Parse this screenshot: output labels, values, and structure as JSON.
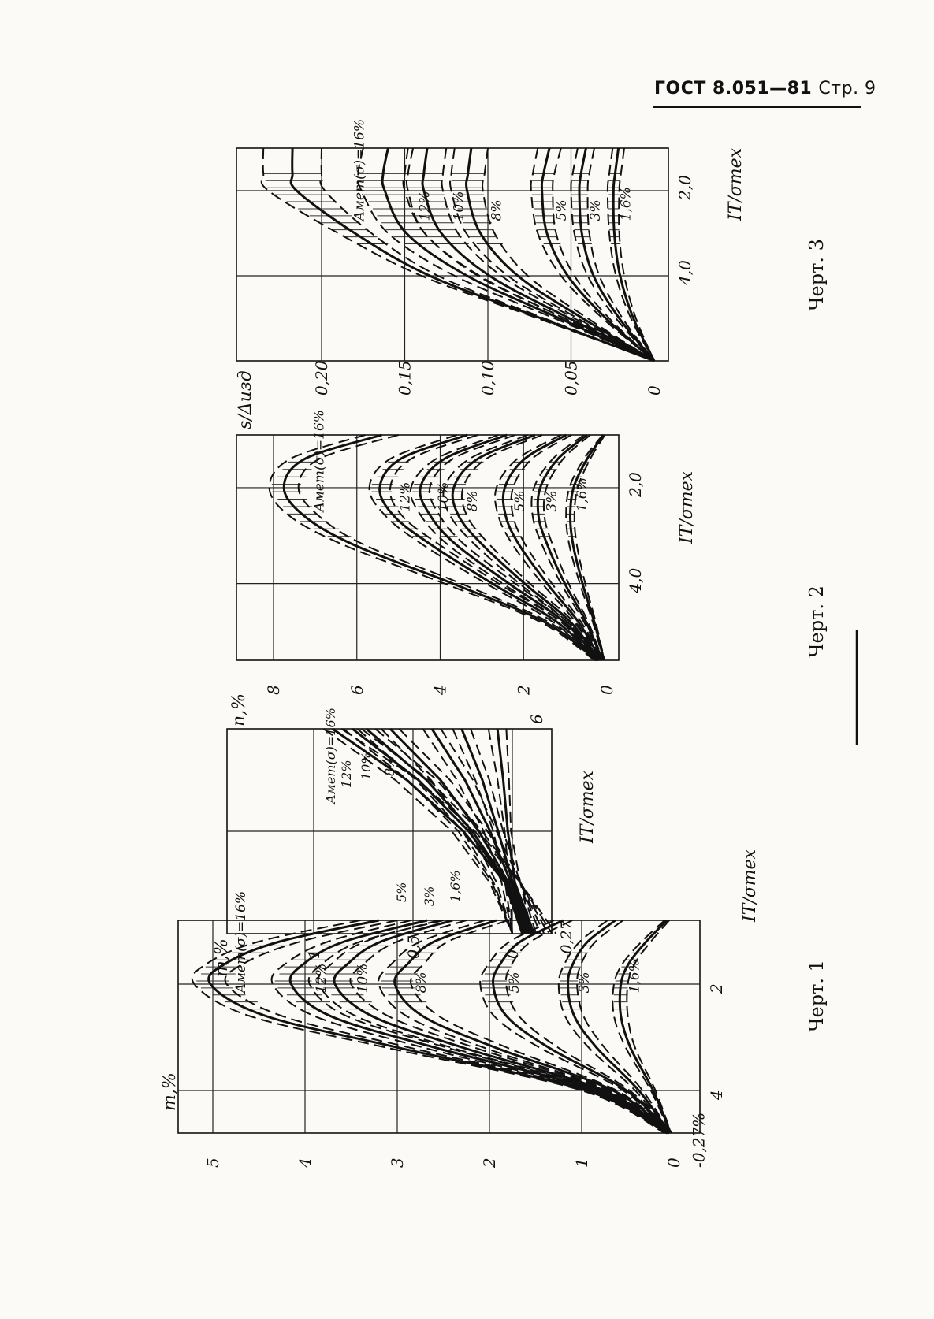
{
  "header": {
    "standard": "ГОСТ 8.051—81",
    "page_label": "Стр. 9"
  },
  "chart_data": [
    {
      "id": "chart1",
      "type": "line",
      "caption": "Черт. 1",
      "ylabel": "m,%",
      "xlabel": "IT/σтех",
      "y_ticks": [
        "5",
        "4",
        "3",
        "2",
        "1",
        "0",
        "-0,27%"
      ],
      "x_ticks": [
        "2",
        "4"
      ],
      "ylim": [
        -0.27,
        5.3
      ],
      "xlim": [
        0.8,
        4.8
      ],
      "series": [
        {
          "name": "Aмет(σ)=16%",
          "x": [
            0.8,
            1.2,
            1.6,
            2.0,
            2.6,
            3.2,
            4.0,
            4.8
          ],
          "upper": [
            3.4,
            4.5,
            5.05,
            5.2,
            4.6,
            3.1,
            1.0,
            0.1
          ],
          "lower": [
            3.0,
            4.05,
            4.65,
            4.85,
            4.25,
            2.85,
            0.9,
            0.05
          ]
        },
        {
          "name": "12%",
          "x": [
            0.8,
            1.2,
            1.6,
            2.0,
            2.6,
            3.2,
            4.0,
            4.8
          ],
          "upper": [
            2.85,
            3.75,
            4.2,
            4.35,
            3.9,
            2.7,
            0.9,
            0.08
          ],
          "lower": [
            2.5,
            3.4,
            3.8,
            3.95,
            3.55,
            2.45,
            0.8,
            0.05
          ]
        },
        {
          "name": "10%",
          "x": [
            0.8,
            1.2,
            1.6,
            2.0,
            2.6,
            3.2,
            4.0,
            4.8
          ],
          "upper": [
            2.55,
            3.35,
            3.7,
            3.85,
            3.45,
            2.4,
            0.8,
            0.07
          ],
          "lower": [
            2.25,
            3.0,
            3.35,
            3.5,
            3.1,
            2.15,
            0.72,
            0.05
          ]
        },
        {
          "name": "8%",
          "x": [
            0.8,
            1.2,
            1.6,
            2.0,
            2.6,
            3.2,
            4.0,
            4.8
          ],
          "upper": [
            2.05,
            2.75,
            3.05,
            3.2,
            2.9,
            2.05,
            0.7,
            0.06
          ],
          "lower": [
            1.8,
            2.45,
            2.7,
            2.85,
            2.55,
            1.8,
            0.62,
            0.04
          ]
        },
        {
          "name": "5%",
          "x": [
            0.8,
            1.2,
            1.6,
            2.0,
            2.6,
            3.2,
            4.0,
            4.8
          ],
          "upper": [
            1.3,
            1.78,
            2.0,
            2.1,
            1.95,
            1.45,
            0.55,
            0.05
          ],
          "lower": [
            1.1,
            1.55,
            1.75,
            1.82,
            1.68,
            1.25,
            0.48,
            0.04
          ]
        },
        {
          "name": "3%",
          "x": [
            0.8,
            1.2,
            1.6,
            2.0,
            2.6,
            3.2,
            4.0,
            4.8
          ],
          "upper": [
            0.72,
            1.02,
            1.18,
            1.25,
            1.18,
            0.92,
            0.42,
            0.05
          ],
          "lower": [
            0.55,
            0.85,
            1.0,
            1.05,
            0.98,
            0.75,
            0.34,
            0.04
          ]
        },
        {
          "name": "1,6%",
          "x": [
            0.8,
            1.2,
            1.6,
            2.0,
            2.6,
            3.2,
            4.0,
            4.8
          ],
          "upper": [
            0.1,
            0.35,
            0.55,
            0.65,
            0.65,
            0.52,
            0.25,
            0.04
          ],
          "lower": [
            0.05,
            0.25,
            0.42,
            0.5,
            0.5,
            0.42,
            0.2,
            0.03
          ]
        }
      ]
    },
    {
      "id": "chart1-inset",
      "type": "line",
      "ylabel": "m,%",
      "xlabel": "IT/σтех",
      "y_ticks": [
        "1",
        "0,5",
        "0",
        "-0,27"
      ],
      "x_ticks": [
        "6"
      ],
      "ylim": [
        -0.27,
        1.0
      ],
      "xlim": [
        4.0,
        6.0
      ],
      "series_labels": [
        "Aмет(σ)=16%",
        "12%",
        "10%",
        "8%",
        "5%",
        "3%",
        "1,6%"
      ]
    },
    {
      "id": "chart2",
      "type": "line",
      "caption": "Черт. 2",
      "ylabel": "n,%",
      "xlabel": "IT/σтех",
      "y_ticks": [
        "8",
        "6",
        "4",
        "2",
        "0"
      ],
      "x_ticks": [
        "2,0",
        "4,0"
      ],
      "ylim": [
        0,
        9.2
      ],
      "xlim": [
        0.9,
        5.6
      ],
      "series": [
        {
          "name": "Aмет(σ)=16%",
          "x": [
            0.9,
            1.4,
            2.0,
            2.6,
            3.2,
            4.0,
            4.8,
            5.6
          ],
          "upper": [
            5.8,
            7.6,
            8.1,
            7.6,
            6.3,
            3.9,
            1.6,
            0.3
          ],
          "lower": [
            5.0,
            6.9,
            7.4,
            6.9,
            5.8,
            3.5,
            1.4,
            0.2
          ]
        },
        {
          "name": "12%",
          "x": [
            0.9,
            1.4,
            2.0,
            2.6,
            3.2,
            4.0,
            4.8,
            5.6
          ],
          "upper": [
            3.6,
            5.2,
            5.7,
            5.3,
            4.4,
            2.9,
            1.3,
            0.25
          ],
          "lower": [
            3.1,
            4.7,
            5.2,
            4.9,
            4.0,
            2.6,
            1.1,
            0.2
          ]
        },
        {
          "name": "10%",
          "x": [
            0.9,
            1.4,
            2.0,
            2.6,
            3.2,
            4.0,
            4.8,
            5.6
          ],
          "upper": [
            2.6,
            4.1,
            4.7,
            4.45,
            3.8,
            2.5,
            1.1,
            0.22
          ],
          "lower": [
            2.2,
            3.7,
            4.25,
            4.0,
            3.4,
            2.2,
            0.95,
            0.18
          ]
        },
        {
          "name": "8%",
          "x": [
            0.9,
            1.4,
            2.0,
            2.6,
            3.2,
            4.0,
            4.8,
            5.6
          ],
          "upper": [
            1.9,
            3.3,
            3.9,
            3.75,
            3.15,
            2.1,
            0.95,
            0.2
          ],
          "lower": [
            1.55,
            2.9,
            3.45,
            3.35,
            2.8,
            1.85,
            0.8,
            0.16
          ]
        },
        {
          "name": "5%",
          "x": [
            0.9,
            1.4,
            2.0,
            2.6,
            3.2,
            4.0,
            4.8,
            5.6
          ],
          "upper": [
            1.1,
            2.15,
            2.65,
            2.6,
            2.25,
            1.55,
            0.75,
            0.16
          ],
          "lower": [
            0.85,
            1.8,
            2.25,
            2.25,
            1.95,
            1.32,
            0.62,
            0.13
          ]
        },
        {
          "name": "3%",
          "x": [
            0.9,
            1.4,
            2.0,
            2.6,
            3.2,
            4.0,
            4.8,
            5.6
          ],
          "upper": [
            0.55,
            1.3,
            1.75,
            1.78,
            1.55,
            1.1,
            0.55,
            0.12
          ],
          "lower": [
            0.4,
            1.05,
            1.45,
            1.5,
            1.3,
            0.92,
            0.45,
            0.1
          ]
        },
        {
          "name": "1,6%",
          "x": [
            0.9,
            1.4,
            2.0,
            2.6,
            3.2,
            4.0,
            4.8,
            5.6
          ],
          "upper": [
            0.1,
            0.55,
            0.9,
            0.98,
            0.9,
            0.65,
            0.34,
            0.08
          ],
          "lower": [
            0.05,
            0.4,
            0.7,
            0.78,
            0.72,
            0.52,
            0.27,
            0.06
          ]
        }
      ]
    },
    {
      "id": "chart3",
      "type": "line",
      "caption": "Черт. 3",
      "ylabel": "s/Δизд",
      "xlabel": "IT/σтех",
      "y_ticks": [
        "0,20",
        "0,15",
        "0,10",
        "0,05",
        "0"
      ],
      "x_ticks": [
        "2,0",
        "4,0"
      ],
      "ylim": [
        0,
        0.245
      ],
      "xlim": [
        1.0,
        6.0
      ],
      "series": [
        {
          "name": "Aмет(σ)=16%",
          "x": [
            1.0,
            1.6,
            2.0,
            3.0,
            4.0,
            5.0,
            6.0
          ],
          "upper": [
            0.235,
            0.235,
            0.232,
            0.19,
            0.14,
            0.07,
            0.0
          ],
          "lower": [
            0.2,
            0.2,
            0.198,
            0.17,
            0.13,
            0.066,
            0.0
          ]
        },
        {
          "name": "12%",
          "x": [
            1.0,
            1.6,
            2.0,
            3.0,
            4.0,
            5.0,
            6.0
          ],
          "upper": [
            0.175,
            0.178,
            0.176,
            0.16,
            0.12,
            0.06,
            0.0
          ],
          "lower": [
            0.145,
            0.148,
            0.148,
            0.138,
            0.105,
            0.054,
            0.0
          ]
        },
        {
          "name": "10%",
          "x": [
            1.0,
            1.6,
            2.0,
            3.0,
            4.0,
            5.0,
            6.0
          ],
          "upper": [
            0.148,
            0.15,
            0.15,
            0.138,
            0.106,
            0.054,
            0.0
          ],
          "lower": [
            0.125,
            0.127,
            0.127,
            0.118,
            0.092,
            0.048,
            0.0
          ]
        },
        {
          "name": "8%",
          "x": [
            1.0,
            1.6,
            2.0,
            3.0,
            4.0,
            5.0,
            6.0
          ],
          "upper": [
            0.12,
            0.122,
            0.122,
            0.113,
            0.088,
            0.046,
            0.0
          ],
          "lower": [
            0.1,
            0.102,
            0.103,
            0.096,
            0.076,
            0.04,
            0.0
          ]
        },
        {
          "name": "5%",
          "x": [
            1.0,
            1.6,
            2.0,
            3.0,
            4.0,
            5.0,
            6.0
          ],
          "upper": [
            0.07,
            0.073,
            0.074,
            0.07,
            0.056,
            0.031,
            0.0
          ],
          "lower": [
            0.056,
            0.06,
            0.061,
            0.059,
            0.048,
            0.027,
            0.0
          ]
        },
        {
          "name": "3%",
          "x": [
            1.0,
            1.6,
            2.0,
            3.0,
            4.0,
            5.0,
            6.0
          ],
          "upper": [
            0.046,
            0.049,
            0.05,
            0.048,
            0.04,
            0.023,
            0.0
          ],
          "lower": [
            0.036,
            0.039,
            0.04,
            0.039,
            0.033,
            0.019,
            0.0
          ]
        },
        {
          "name": "1,6%",
          "x": [
            1.0,
            1.6,
            2.0,
            3.0,
            4.0,
            5.0,
            6.0
          ],
          "upper": [
            0.025,
            0.027,
            0.028,
            0.027,
            0.023,
            0.014,
            0.0
          ],
          "lower": [
            0.018,
            0.02,
            0.021,
            0.021,
            0.018,
            0.011,
            0.0
          ]
        }
      ]
    }
  ]
}
